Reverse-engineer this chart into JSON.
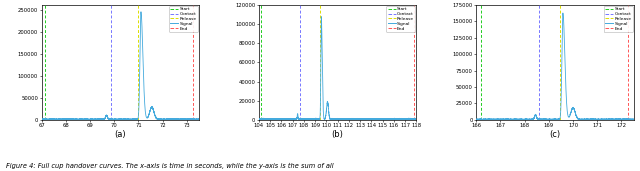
{
  "fig_width": 6.4,
  "fig_height": 1.71,
  "dpi": 100,
  "caption": "Figure 4: Full cup handover curves. The x-axis is time in seconds, while the y-axis is the sum of all",
  "subplots": [
    {
      "label": "(a)",
      "xlim": [
        67,
        73.5
      ],
      "xticks": [
        67,
        68,
        69,
        70,
        71,
        72,
        73
      ],
      "ylim": [
        0,
        260000
      ],
      "yticks": [
        0,
        50000,
        100000,
        150000,
        200000,
        250000
      ],
      "start_x": 67.12,
      "contact_x": 69.85,
      "release_x": 71.0,
      "end_x": 73.25,
      "peak_x": 71.1,
      "peak_y": 245000,
      "bump1_x": 69.68,
      "bump1_y": 9000,
      "post_peak_x": 71.55,
      "post_peak_y": 28000,
      "baseline_noise": 2500
    },
    {
      "label": "(b)",
      "xlim": [
        104,
        118
      ],
      "xticks": [
        104,
        105,
        106,
        107,
        108,
        109,
        110,
        111,
        112,
        113,
        114,
        115,
        116,
        117,
        118
      ],
      "ylim": [
        0,
        120000
      ],
      "yticks": [
        0,
        20000,
        40000,
        60000,
        80000,
        100000,
        120000
      ],
      "start_x": 104.15,
      "contact_x": 107.7,
      "release_x": 109.45,
      "end_x": 117.8,
      "peak_x": 109.55,
      "peak_y": 108000,
      "bump1_x": 107.45,
      "bump1_y": 5000,
      "post_peak_x": 110.1,
      "post_peak_y": 18000,
      "baseline_noise": 1500
    },
    {
      "label": "(c)",
      "xlim": [
        166,
        172.5
      ],
      "xticks": [
        166,
        167,
        168,
        169,
        170,
        171,
        172
      ],
      "ylim": [
        0,
        175000
      ],
      "yticks": [
        0,
        25000,
        50000,
        75000,
        100000,
        125000,
        150000,
        175000
      ],
      "start_x": 166.18,
      "contact_x": 168.58,
      "release_x": 169.48,
      "end_x": 172.28,
      "peak_x": 169.58,
      "peak_y": 163000,
      "bump1_x": 168.45,
      "bump1_y": 7000,
      "post_peak_x": 170.0,
      "post_peak_y": 18000,
      "baseline_noise": 1500
    }
  ],
  "colors": {
    "start": "#22cc22",
    "contact": "#7777ff",
    "release": "#dddd00",
    "end": "#ff5555",
    "signal": "#44aadd"
  }
}
